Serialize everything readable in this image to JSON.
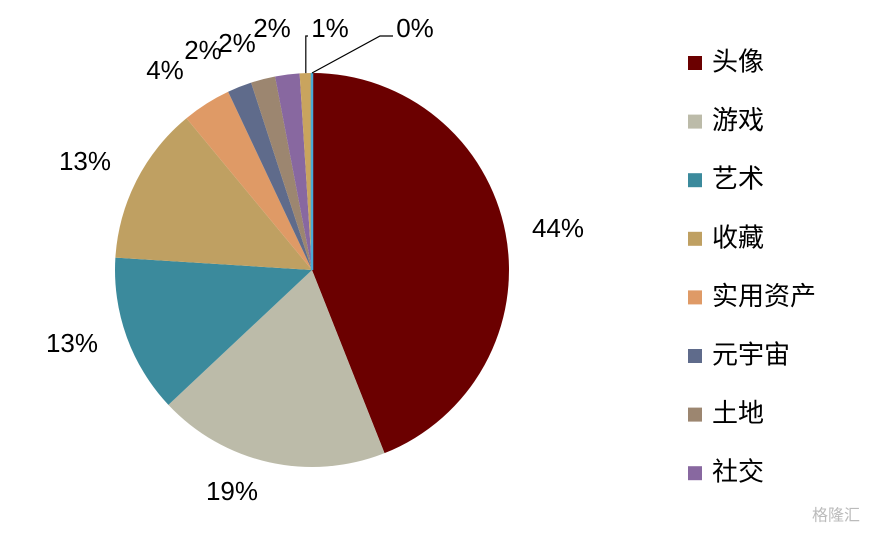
{
  "chart_data": {
    "type": "pie",
    "categories": [
      "头像",
      "游戏",
      "艺术",
      "收藏",
      "实用资产",
      "元宇宙",
      "土地",
      "社交",
      null,
      null
    ],
    "values": [
      44,
      19,
      13,
      13,
      4,
      2,
      2,
      2,
      1,
      0
    ],
    "value_labels": [
      "44%",
      "19%",
      "13%",
      "13%",
      "4%",
      "2%",
      "2%",
      "2%",
      "1%",
      "0%"
    ],
    "colors": [
      "#6b0000",
      "#bcbba9",
      "#3b8a9c",
      "#bfa062",
      "#df9a66",
      "#5f6b8b",
      "#9c8670",
      "#8868a0",
      "#c9a45e",
      "#4aa9d6"
    ],
    "legend": "right",
    "watermark": "格隆汇"
  }
}
